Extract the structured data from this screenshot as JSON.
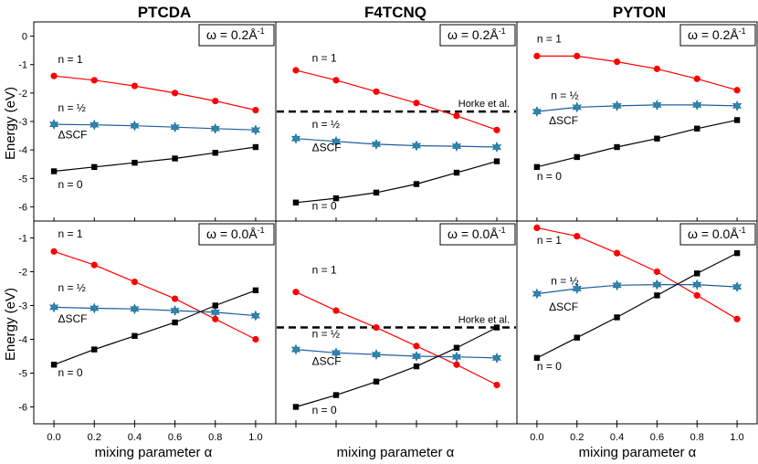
{
  "figure": {
    "columns": [
      "PTCDA",
      "F4TCNQ",
      "PYTON"
    ],
    "ylabel": "Energy (eV)",
    "xlabel": "mixing parameter α"
  },
  "chart_data": [
    {
      "id": "ptcda-top",
      "type": "line",
      "row": 0,
      "col": 0,
      "title": "PTCDA",
      "omega_label": "ω = 0.2Å",
      "omega_exp": "-1",
      "xlabel": "",
      "ylabel": "Energy (eV)",
      "xlim": [
        -0.1,
        1.1
      ],
      "ylim": [
        -6.5,
        0.5
      ],
      "xticks": [
        0.0,
        0.2,
        0.4,
        0.6,
        0.8,
        1.0
      ],
      "yticks": [
        0,
        -1,
        -2,
        -3,
        -4,
        -5,
        -6
      ],
      "x": [
        0.0,
        0.2,
        0.4,
        0.6,
        0.8,
        1.0
      ],
      "series": [
        {
          "name": "n = 1",
          "color": "#ff0000",
          "marker": "circle",
          "values": [
            -1.4,
            -1.55,
            -1.75,
            -2.0,
            -2.28,
            -2.6
          ]
        },
        {
          "name": "n = ½ (ΔSCF)",
          "color": "#1e5f9e",
          "marker": "star",
          "values": [
            -3.1,
            -3.12,
            -3.15,
            -3.2,
            -3.25,
            -3.3
          ]
        },
        {
          "name": "n = 0",
          "color": "#000000",
          "marker": "square",
          "values": [
            -4.75,
            -4.6,
            -4.45,
            -4.3,
            -4.1,
            -3.9
          ]
        }
      ],
      "annotations": [
        {
          "text": "n = 1",
          "at": [
            0.02,
            -0.95
          ]
        },
        {
          "text": "n = ½",
          "at": [
            0.02,
            -2.65
          ]
        },
        {
          "text": "ΔSCF",
          "at": [
            0.02,
            -3.6
          ]
        },
        {
          "text": "n = 0",
          "at": [
            0.02,
            -5.35
          ]
        }
      ]
    },
    {
      "id": "f4tcnq-top",
      "type": "line",
      "row": 0,
      "col": 1,
      "title": "F4TCNQ",
      "omega_label": "ω = 0.2Å",
      "omega_exp": "-1",
      "xlabel": "",
      "ylabel": "",
      "xlim": [
        -0.1,
        1.1
      ],
      "ylim": [
        -6.5,
        0.5
      ],
      "x": [
        0.0,
        0.2,
        0.4,
        0.6,
        0.8,
        1.0
      ],
      "reference": {
        "label": "Horke et al.",
        "value": -2.65
      },
      "series": [
        {
          "name": "n = 1",
          "color": "#ff0000",
          "marker": "circle",
          "values": [
            -1.2,
            -1.55,
            -1.95,
            -2.35,
            -2.8,
            -3.3
          ]
        },
        {
          "name": "n = ½ (ΔSCF)",
          "color": "#1e5f9e",
          "marker": "star",
          "values": [
            -3.6,
            -3.7,
            -3.8,
            -3.85,
            -3.87,
            -3.9
          ]
        },
        {
          "name": "n = 0",
          "color": "#000000",
          "marker": "square",
          "values": [
            -5.85,
            -5.7,
            -5.5,
            -5.2,
            -4.8,
            -4.4
          ]
        }
      ],
      "annotations": [
        {
          "text": "n = 1",
          "at": [
            0.08,
            -0.9
          ]
        },
        {
          "text": "n = ½",
          "at": [
            0.08,
            -3.22
          ]
        },
        {
          "text": "ΔSCF",
          "at": [
            0.08,
            -4.05
          ]
        },
        {
          "text": "n = 0",
          "at": [
            0.08,
            -6.1
          ]
        }
      ]
    },
    {
      "id": "pyton-top",
      "type": "line",
      "row": 0,
      "col": 2,
      "title": "PYTON",
      "omega_label": "ω = 0.2Å",
      "omega_exp": "-1",
      "xlabel": "",
      "ylabel": "",
      "xlim": [
        -0.1,
        1.1
      ],
      "ylim": [
        -6.5,
        0.5
      ],
      "x": [
        0.0,
        0.2,
        0.4,
        0.6,
        0.8,
        1.0
      ],
      "series": [
        {
          "name": "n = 1",
          "color": "#ff0000",
          "marker": "circle",
          "values": [
            -0.7,
            -0.7,
            -0.9,
            -1.15,
            -1.5,
            -1.9
          ]
        },
        {
          "name": "n = ½ (ΔSCF)",
          "color": "#1e5f9e",
          "marker": "star",
          "values": [
            -2.65,
            -2.5,
            -2.45,
            -2.42,
            -2.42,
            -2.45
          ]
        },
        {
          "name": "n = 0",
          "color": "#000000",
          "marker": "square",
          "values": [
            -4.6,
            -4.25,
            -3.9,
            -3.6,
            -3.25,
            -2.95
          ]
        }
      ],
      "annotations": [
        {
          "text": "n = 1",
          "at": [
            0.0,
            -0.22
          ]
        },
        {
          "text": "n = ½",
          "at": [
            0.07,
            -2.22
          ]
        },
        {
          "text": "ΔSCF",
          "at": [
            0.06,
            -3.1
          ]
        },
        {
          "text": "n = 0",
          "at": [
            0.0,
            -5.05
          ]
        }
      ]
    },
    {
      "id": "ptcda-bottom",
      "type": "line",
      "row": 1,
      "col": 0,
      "title": "",
      "omega_label": "ω = 0.0Å",
      "omega_exp": "-1",
      "xlabel": "mixing parameter α",
      "ylabel": "Energy (eV)",
      "xlim": [
        -0.1,
        1.1
      ],
      "ylim": [
        -6.5,
        -0.5
      ],
      "xticks": [
        0.0,
        0.2,
        0.4,
        0.6,
        0.8,
        1.0
      ],
      "yticks": [
        -1,
        -2,
        -3,
        -4,
        -5,
        -6
      ],
      "x": [
        0.0,
        0.2,
        0.4,
        0.6,
        0.8,
        1.0
      ],
      "series": [
        {
          "name": "n = 1",
          "color": "#ff0000",
          "marker": "circle",
          "values": [
            -1.4,
            -1.8,
            -2.3,
            -2.8,
            -3.4,
            -4.0
          ]
        },
        {
          "name": "n = ½ (ΔSCF)",
          "color": "#1e5f9e",
          "marker": "star",
          "values": [
            -3.05,
            -3.08,
            -3.1,
            -3.15,
            -3.2,
            -3.3
          ]
        },
        {
          "name": "n = 0",
          "color": "#000000",
          "marker": "square",
          "values": [
            -4.75,
            -4.3,
            -3.9,
            -3.5,
            -3.0,
            -2.55
          ]
        }
      ],
      "annotations": [
        {
          "text": "n = 1",
          "at": [
            0.02,
            -0.98
          ]
        },
        {
          "text": "n = ½",
          "at": [
            0.02,
            -2.58
          ]
        },
        {
          "text": "ΔSCF",
          "at": [
            0.02,
            -3.5
          ]
        },
        {
          "text": "n = 0",
          "at": [
            0.02,
            -5.1
          ]
        }
      ]
    },
    {
      "id": "f4tcnq-bottom",
      "type": "line",
      "row": 1,
      "col": 1,
      "title": "",
      "omega_label": "ω = 0.0Å",
      "omega_exp": "-1",
      "xlabel": "mixing parameter α",
      "ylabel": "",
      "xlim": [
        -0.1,
        1.1
      ],
      "ylim": [
        -6.5,
        -0.5
      ],
      "x": [
        0.0,
        0.2,
        0.4,
        0.6,
        0.8,
        1.0
      ],
      "reference": {
        "label": "Horke et al.",
        "value": -3.65
      },
      "series": [
        {
          "name": "n = 1",
          "color": "#ff0000",
          "marker": "circle",
          "values": [
            -2.6,
            -3.15,
            -3.65,
            -4.2,
            -4.75,
            -5.35
          ]
        },
        {
          "name": "n = ½ (ΔSCF)",
          "color": "#1e5f9e",
          "marker": "star",
          "values": [
            -4.3,
            -4.4,
            -4.45,
            -4.5,
            -4.52,
            -4.55
          ]
        },
        {
          "name": "n = 0",
          "color": "#000000",
          "marker": "square",
          "values": [
            -6.0,
            -5.65,
            -5.25,
            -4.8,
            -4.25,
            -3.65
          ]
        }
      ],
      "annotations": [
        {
          "text": "n = 1",
          "at": [
            0.08,
            -2.05
          ]
        },
        {
          "text": "n = ½",
          "at": [
            0.08,
            -3.95
          ]
        },
        {
          "text": "ΔSCF",
          "at": [
            0.08,
            -4.75
          ]
        },
        {
          "text": "n = 0",
          "at": [
            0.08,
            -6.2
          ]
        }
      ]
    },
    {
      "id": "pyton-bottom",
      "type": "line",
      "row": 1,
      "col": 2,
      "title": "",
      "omega_label": "ω = 0.0Å",
      "omega_exp": "-1",
      "xlabel": "mixing parameter α",
      "ylabel": "",
      "xlim": [
        -0.1,
        1.1
      ],
      "ylim": [
        -6.5,
        -0.5
      ],
      "xticks": [
        0.0,
        0.2,
        0.4,
        0.6,
        0.8,
        1.0
      ],
      "x": [
        0.0,
        0.2,
        0.4,
        0.6,
        0.8,
        1.0
      ],
      "series": [
        {
          "name": "n = 1",
          "color": "#ff0000",
          "marker": "circle",
          "values": [
            -0.7,
            -0.95,
            -1.45,
            -2.0,
            -2.7,
            -3.4
          ]
        },
        {
          "name": "n = ½ (ΔSCF)",
          "color": "#1e5f9e",
          "marker": "star",
          "values": [
            -2.65,
            -2.5,
            -2.4,
            -2.38,
            -2.38,
            -2.45
          ]
        },
        {
          "name": "n = 0",
          "color": "#000000",
          "marker": "square",
          "values": [
            -4.55,
            -3.95,
            -3.35,
            -2.7,
            -2.05,
            -1.45
          ]
        }
      ],
      "annotations": [
        {
          "text": "n = 1",
          "at": [
            0.0,
            -1.18
          ]
        },
        {
          "text": "n = ½",
          "at": [
            0.07,
            -2.38
          ]
        },
        {
          "text": "ΔSCF",
          "at": [
            0.06,
            -3.15
          ]
        },
        {
          "text": "n = 0",
          "at": [
            0.0,
            -4.9
          ]
        }
      ]
    }
  ]
}
